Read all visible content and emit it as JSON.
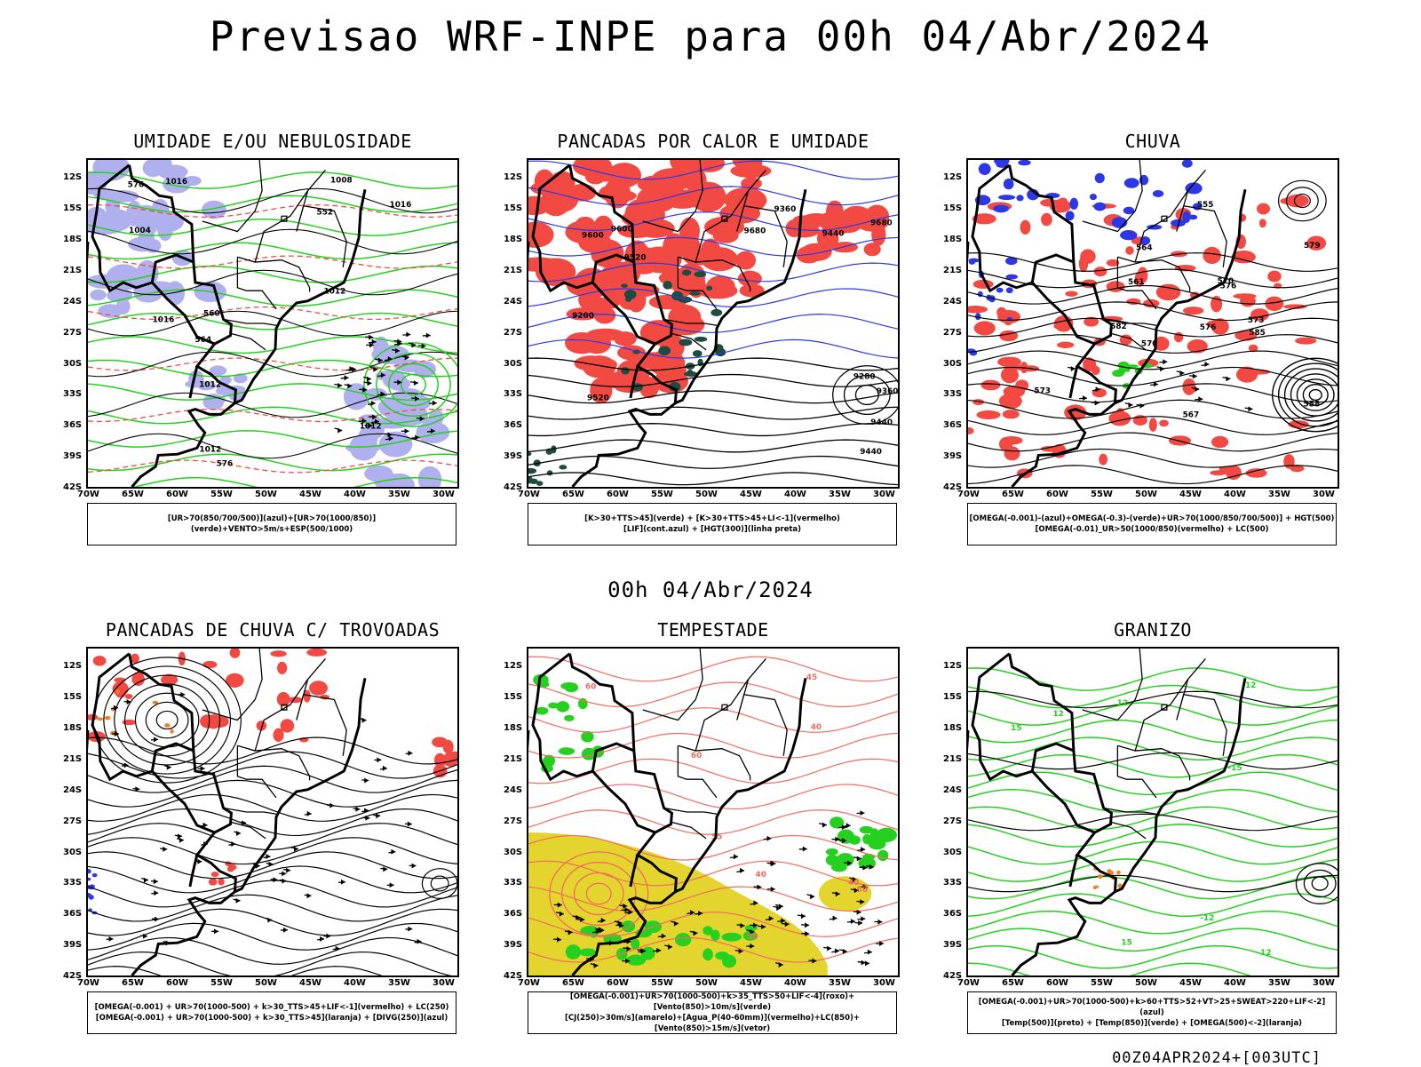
{
  "main_title": "Previsao WRF-INPE  para 00h 04/Abr/2024",
  "mid_title": "00h 04/Abr/2024",
  "footer": "00Z04APR2024+[003UTC]",
  "colors": {
    "red": "#f24a43",
    "green": "#25d01e",
    "blue": "#2c37e6",
    "lilac": "#b0b0ee",
    "yellow": "#e3d52e",
    "darkgreen": "#1f4c40",
    "orange": "#f07f20",
    "salmon": "#f26b5f"
  },
  "chart_data": [
    {
      "type": "map",
      "title": "UMIDADE E/OU NEBULOSIDADE",
      "xticks": [
        "70W",
        "65W",
        "60W",
        "55W",
        "50W",
        "45W",
        "40W",
        "35W",
        "30W"
      ],
      "yticks": [
        "12S",
        "15S",
        "18S",
        "21S",
        "24S",
        "27S",
        "30S",
        "33S",
        "36S",
        "39S",
        "42S"
      ],
      "xlim": [
        -70,
        -28
      ],
      "ylim": [
        -42,
        -10
      ],
      "contour_labels": [
        "1012",
        "1012",
        "1012",
        "1016",
        "1016",
        "1012",
        "1008",
        "1004",
        "576",
        "576",
        "564",
        "552",
        "560",
        "1016"
      ],
      "legend": [
        "[UR>70(850/700/500)](azul)+[UR>70(1000/850)](verde)+VENTO>5m/s+ESP(500/1000)"
      ]
    },
    {
      "type": "map",
      "title": "PANCADAS POR CALOR E UMIDADE",
      "xticks": [
        "70W",
        "65W",
        "60W",
        "55W",
        "50W",
        "45W",
        "40W",
        "35W",
        "30W"
      ],
      "yticks": [
        "12S",
        "15S",
        "18S",
        "21S",
        "24S",
        "27S",
        "30S",
        "33S",
        "36S",
        "39S",
        "42S"
      ],
      "xlim": [
        -70,
        -28
      ],
      "ylim": [
        -42,
        -10
      ],
      "contour_labels": [
        "9680",
        "9680",
        "9600",
        "9600",
        "9520",
        "9440",
        "9360",
        "9280",
        "9200",
        "9440",
        "9520",
        "9360",
        "9440"
      ],
      "legend": [
        "[K>30+TTS>45](verde) + [K>30+TTS>45+LI<-1](vermelho)",
        "[LIF](cont.azul) + [HGT(300)](linha preta)"
      ]
    },
    {
      "type": "map",
      "title": "CHUVA",
      "xticks": [
        "70W",
        "65W",
        "60W",
        "55W",
        "50W",
        "45W",
        "40W",
        "35W",
        "30W"
      ],
      "yticks": [
        "12S",
        "15S",
        "18S",
        "21S",
        "24S",
        "27S",
        "30S",
        "33S",
        "36S",
        "39S",
        "42S"
      ],
      "xlim": [
        -70,
        -28
      ],
      "ylim": [
        -42,
        -10
      ],
      "contour_labels": [
        "585",
        "582",
        "579",
        "576",
        "573",
        "570",
        "567",
        "564",
        "561",
        "558",
        "555",
        "570",
        "573",
        "576"
      ],
      "legend": [
        "[OMEGA(-0.001)-(azul)+OMEGA(-0.3)-(verde)+UR>70(1000/850/700/500)] + HGT(500)",
        "[OMEGA(-0.01)_UR>50(1000/850)(vermelho) + LC(500)"
      ]
    },
    {
      "type": "map",
      "title": "PANCADAS DE CHUVA C/ TROVOADAS",
      "xticks": [
        "70W",
        "65W",
        "60W",
        "55W",
        "50W",
        "45W",
        "40W",
        "35W",
        "30W"
      ],
      "yticks": [
        "12S",
        "15S",
        "18S",
        "21S",
        "24S",
        "27S",
        "30S",
        "33S",
        "36S",
        "39S",
        "42S"
      ],
      "xlim": [
        -70,
        -28
      ],
      "ylim": [
        -42,
        -10
      ],
      "contour_labels": [],
      "legend": [
        "[OMEGA(-0.001) + UR>70(1000-500) + k>30_TTS>45+LIF<-1](vermelho) + LC(250)",
        "[OMEGA(-0.001) + UR>70(1000-500) + k>30_TTS>45](laranja) + [DIVG(250)](azul)"
      ]
    },
    {
      "type": "map",
      "title": "TEMPESTADE",
      "xticks": [
        "70W",
        "65W",
        "60W",
        "55W",
        "50W",
        "45W",
        "40W",
        "35W",
        "30W"
      ],
      "yticks": [
        "12S",
        "15S",
        "18S",
        "21S",
        "24S",
        "27S",
        "30S",
        "33S",
        "36S",
        "39S",
        "42S"
      ],
      "xlim": [
        -70,
        -28
      ],
      "ylim": [
        -42,
        -10
      ],
      "contour_labels": [
        "40",
        "60",
        "40",
        "50",
        "40",
        "45",
        "50",
        "55",
        "60"
      ],
      "legend": [
        "[OMEGA(-0.001)+UR>70(1000-500)+k>35_TTS>50+LIF<-4](roxo)+[Vento(850)>10m/s](verde)",
        "[CJ(250)>30m/s](amarelo)+[Agua_P(40-60mm)](vermelho)+LC(850)+[Vento(850)>15m/s](vetor)"
      ]
    },
    {
      "type": "map",
      "title": "GRANIZO",
      "xticks": [
        "70W",
        "65W",
        "60W",
        "55W",
        "50W",
        "45W",
        "40W",
        "35W",
        "30W"
      ],
      "yticks": [
        "12S",
        "15S",
        "18S",
        "21S",
        "24S",
        "27S",
        "30S",
        "33S",
        "36S",
        "39S",
        "42S"
      ],
      "xlim": [
        -70,
        -28
      ],
      "ylim": [
        -42,
        -10
      ],
      "contour_labels": [
        "15",
        "12",
        "15",
        "12",
        "-12",
        "-12",
        "-15",
        "12"
      ],
      "legend": [
        "[OMEGA(-0.001)+UR>70(1000-500)+k>60+TTS>52+VT>25+SWEAT>220+LIF<-2](azul)",
        "[Temp(500)](preto) + [Temp(850)](verde) + [OMEGA(500)<-2](laranja)"
      ]
    }
  ]
}
